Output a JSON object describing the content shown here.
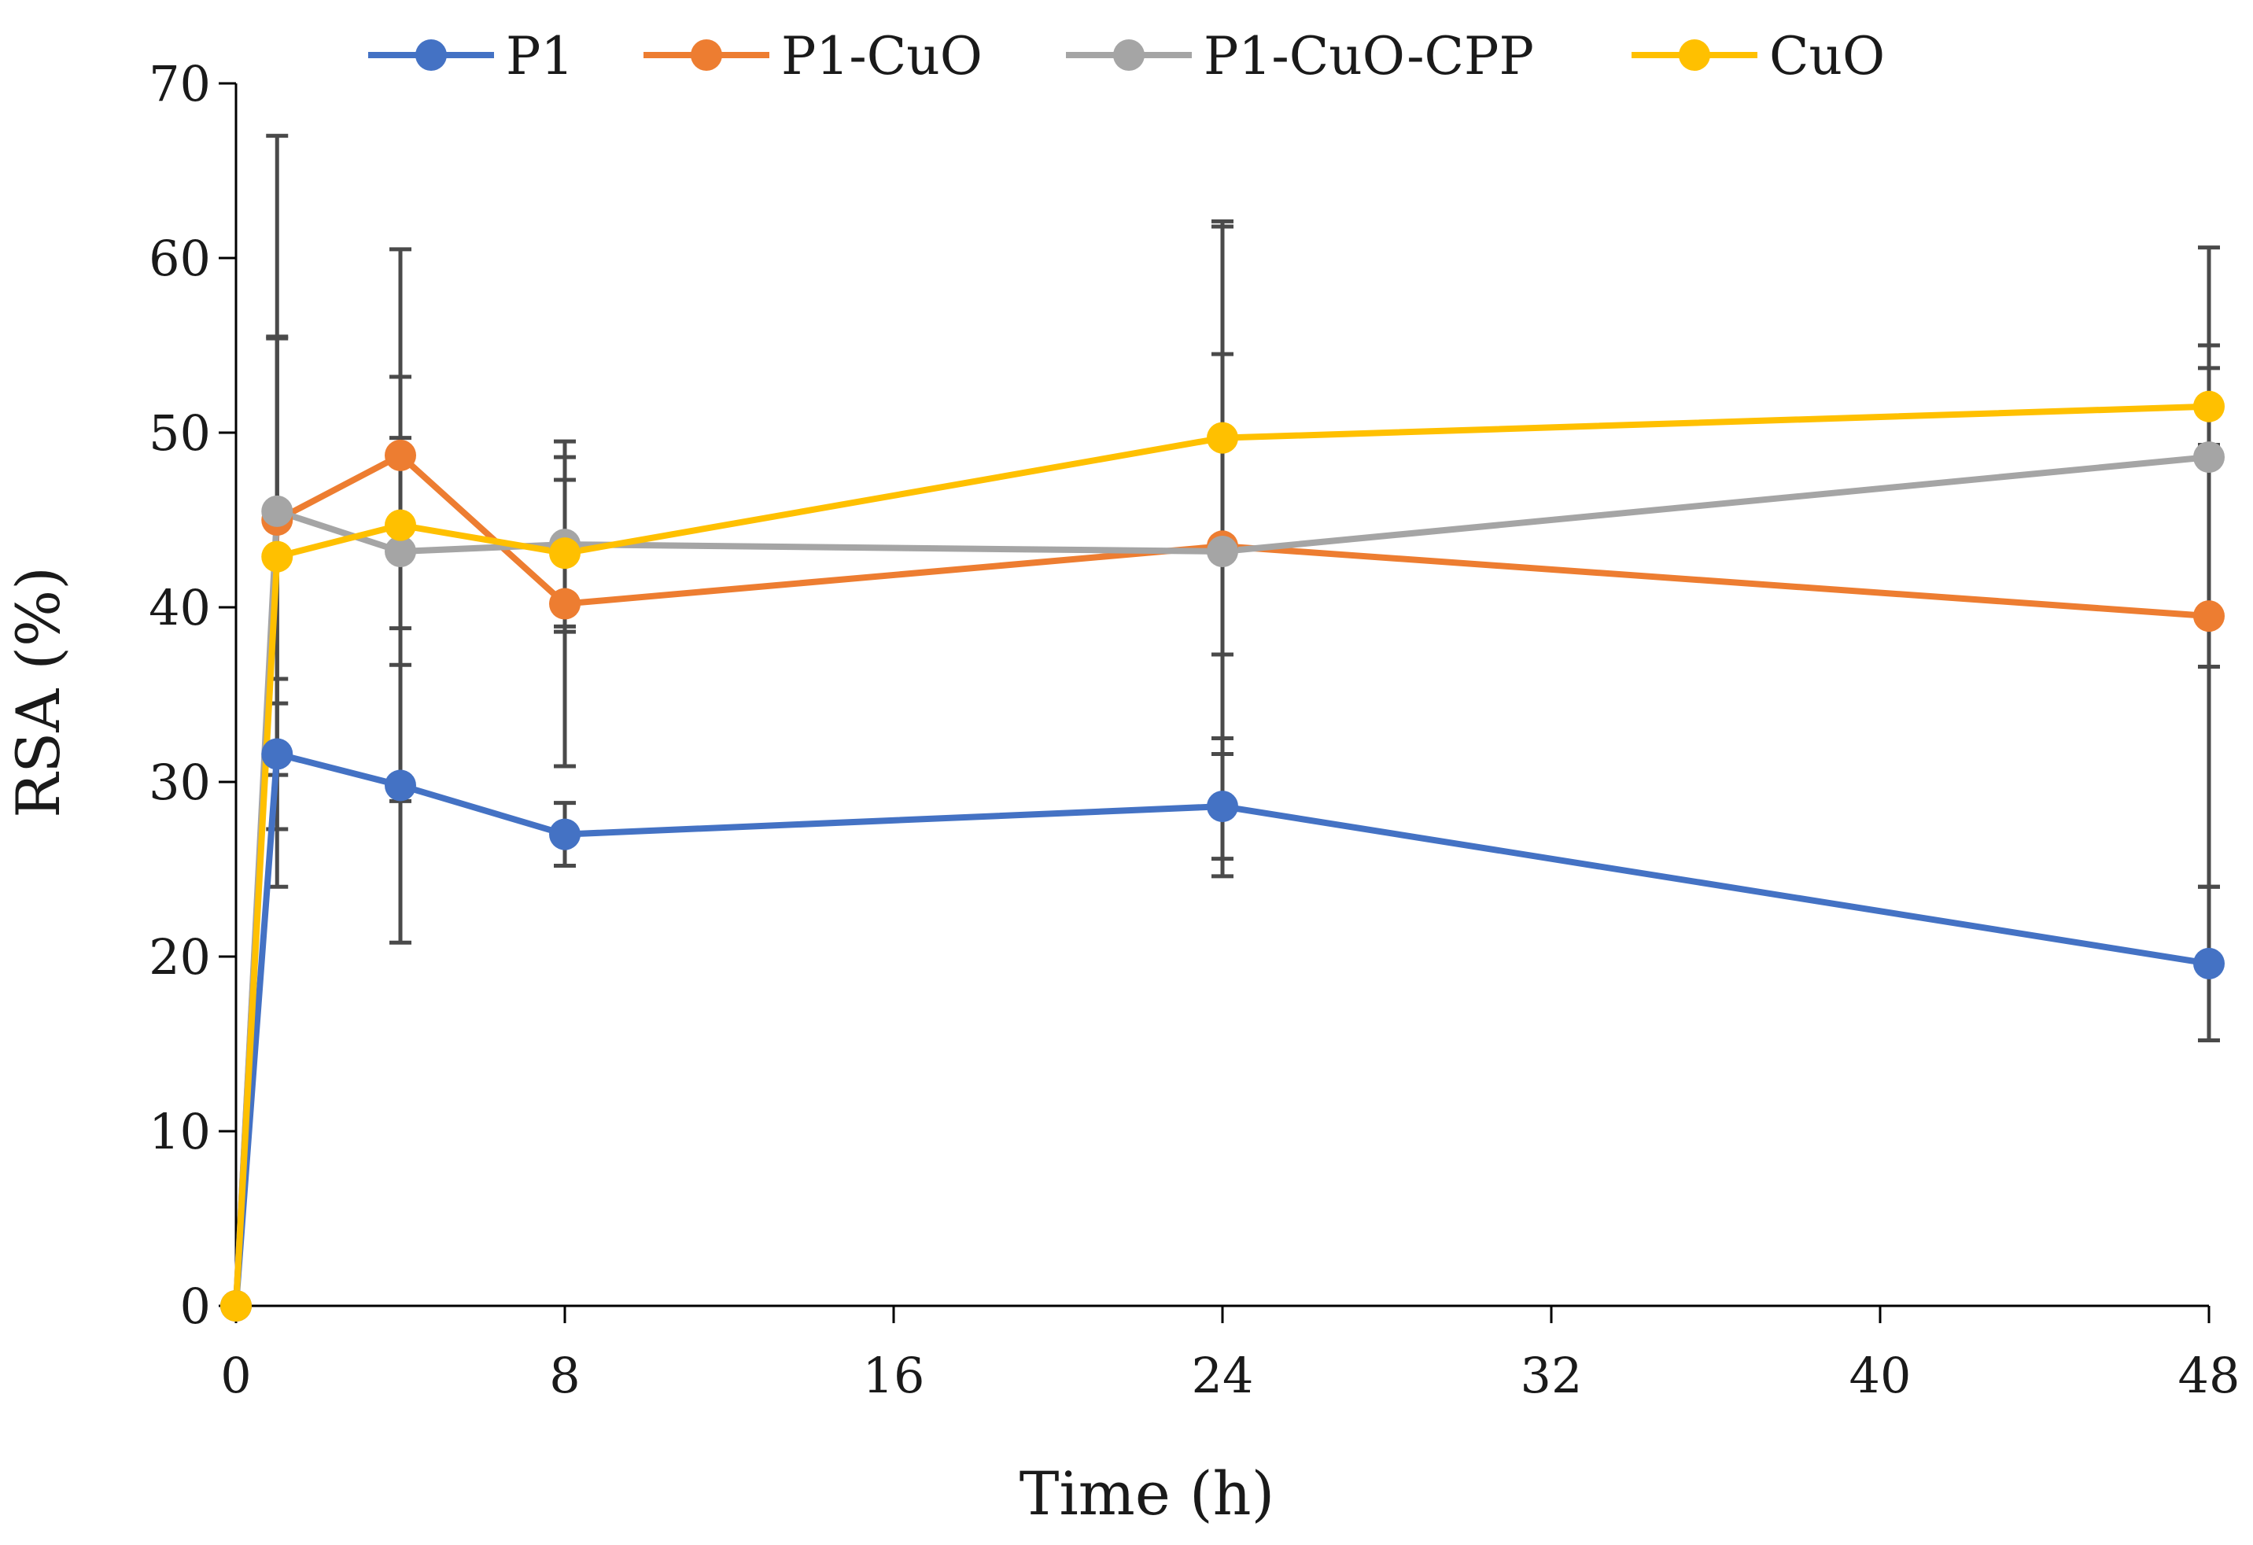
{
  "chart_data": {
    "type": "line",
    "title": "",
    "xlabel": "Time (h)",
    "ylabel": "RSA (%)",
    "xlim": [
      0,
      48
    ],
    "ylim": [
      0,
      70
    ],
    "xticks": [
      0,
      8,
      16,
      24,
      32,
      40,
      48
    ],
    "yticks": [
      0,
      10,
      20,
      30,
      40,
      50,
      60,
      70
    ],
    "xtick_labels": [
      "0",
      "8",
      "16",
      "24",
      "32",
      "40",
      "48"
    ],
    "ytick_labels": [
      "0",
      "10",
      "20",
      "30",
      "40",
      "50",
      "60",
      "70"
    ],
    "grid": false,
    "legend_position": "top",
    "x": [
      0,
      1,
      4,
      8,
      24,
      48
    ],
    "series": [
      {
        "name": "P1",
        "color": "#4472C4",
        "values": [
          0,
          31.6,
          29.8,
          27.0,
          28.6,
          19.6
        ],
        "errors": [
          0,
          4.3,
          9.0,
          1.8,
          3.0,
          4.4
        ]
      },
      {
        "name": "P1-CuO",
        "color": "#ED7D31",
        "values": [
          0,
          45.0,
          48.7,
          40.2,
          43.5,
          39.5
        ],
        "errors": [
          0,
          10.5,
          4.5,
          9.3,
          11.0,
          15.5
        ]
      },
      {
        "name": "P1-CuO-CPP",
        "color": "#A5A5A5",
        "values": [
          0,
          45.5,
          43.2,
          43.6,
          43.2,
          48.6
        ],
        "errors": [
          0,
          21.5,
          6.5,
          5.0,
          18.6,
          12.0
        ]
      },
      {
        "name": "CuO",
        "color": "#FFC000",
        "values": [
          0,
          42.9,
          44.7,
          43.1,
          49.7,
          51.5
        ],
        "errors": [
          0,
          12.5,
          15.8,
          4.2,
          12.4,
          2.2
        ]
      }
    ]
  }
}
